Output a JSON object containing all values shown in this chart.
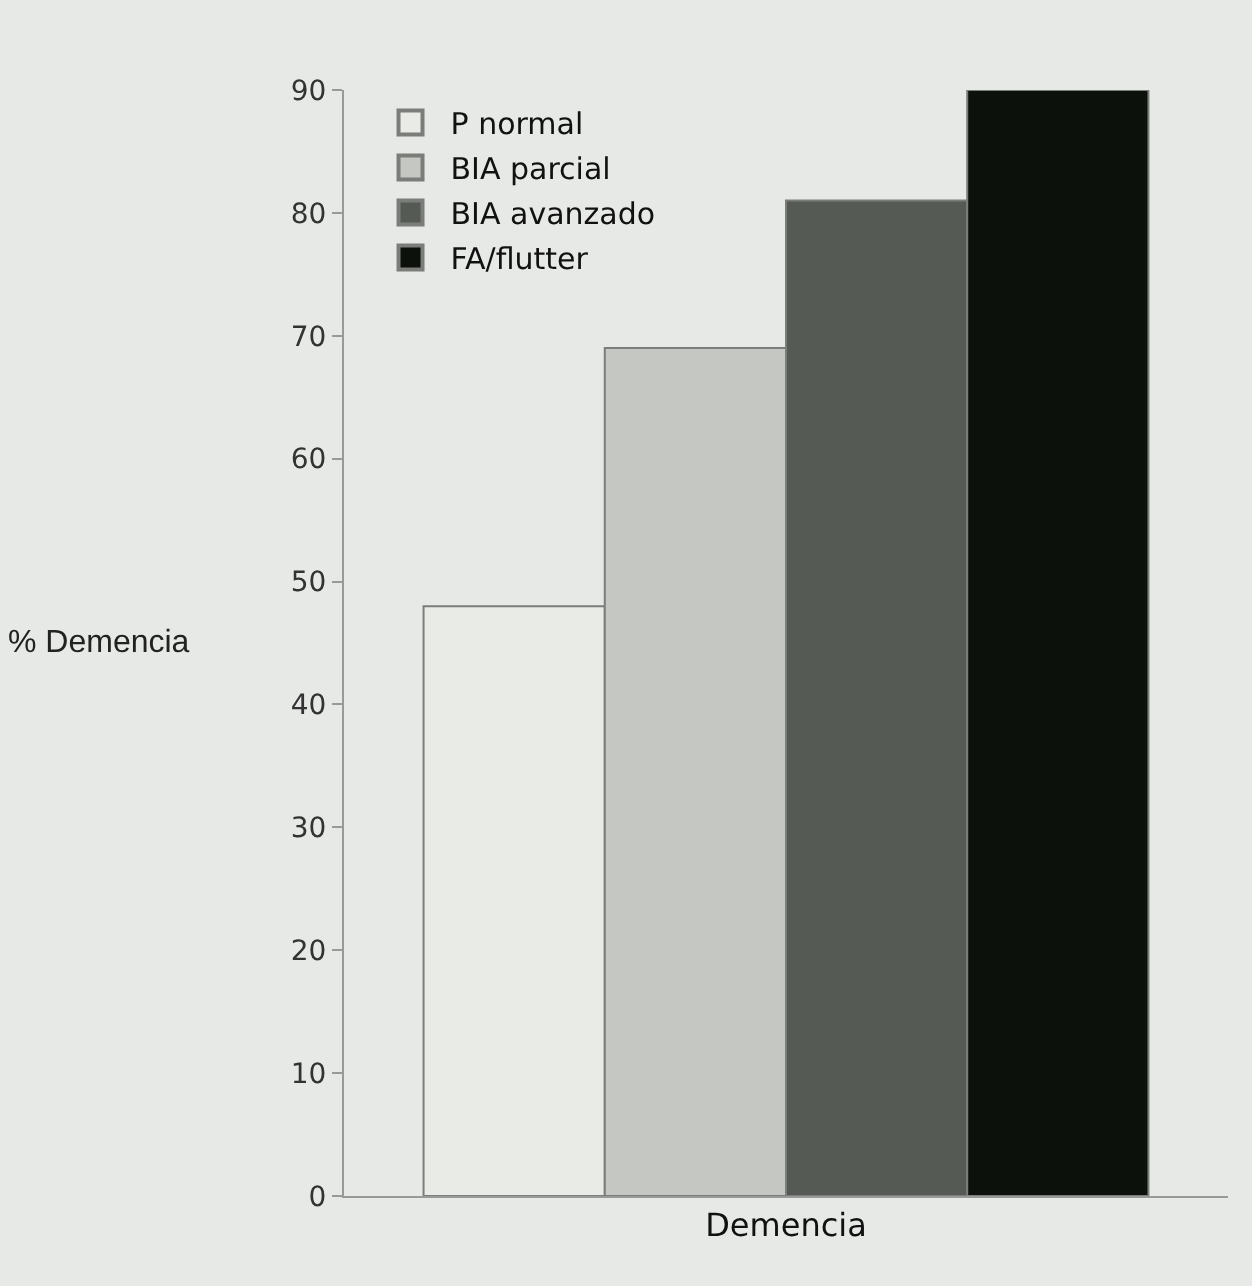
{
  "chart_data": {
    "type": "bar",
    "ylabel": "% Demencia",
    "categories": [
      "Demencia"
    ],
    "series": [
      {
        "name": "P normal",
        "color": "#e8ebe6",
        "values": [
          48
        ]
      },
      {
        "name": "BIA parcial",
        "color": "#c4c7c2",
        "values": [
          69
        ]
      },
      {
        "name": "BIA avanzado",
        "color": "#565a54",
        "values": [
          81
        ]
      },
      {
        "name": "FA/flutter",
        "color": "#0d110c",
        "values": [
          90
        ]
      }
    ],
    "ylim": [
      0,
      90
    ],
    "yticks": [
      0,
      10,
      20,
      30,
      40,
      50,
      60,
      70,
      80,
      90
    ],
    "grid": false,
    "legend": "top left"
  }
}
